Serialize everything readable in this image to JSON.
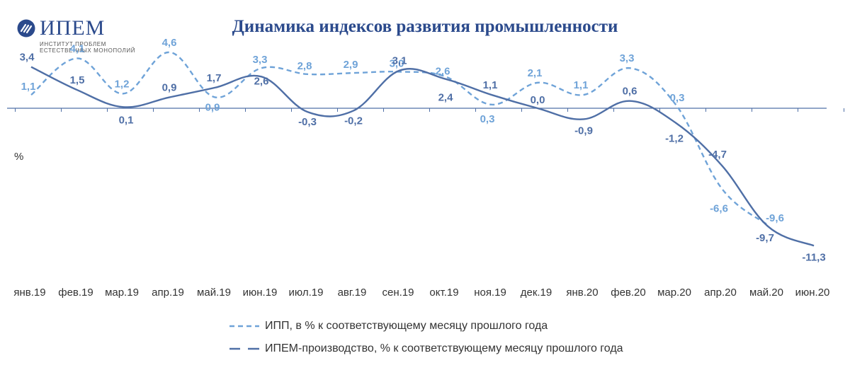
{
  "logo": {
    "name": "ИПЕМ",
    "subtitle_line1": "ИНСТИТУТ ПРОБЛЕМ",
    "subtitle_line2": "ЕСТЕСТВЕННЫХ МОНОПОЛИЙ",
    "icon": "ipem-logo-icon"
  },
  "chart_data": {
    "type": "line",
    "title": "Динамика индексов развития промышленности",
    "ylabel": "%",
    "categories": [
      "янв.19",
      "фев.19",
      "мар.19",
      "апр.19",
      "май.19",
      "июн.19",
      "июл.19",
      "авг.19",
      "сен.19",
      "окт.19",
      "ноя.19",
      "дек.19",
      "янв.20",
      "фев.20",
      "мар.20",
      "апр.20",
      "май.20",
      "июн.20"
    ],
    "series": [
      {
        "name": "ИПП, в % к соответствующему месяцу прошлого года",
        "style": "dashed",
        "color": "#6fa3d8",
        "values": [
          1.1,
          4.1,
          1.2,
          4.6,
          0.9,
          3.3,
          2.8,
          2.9,
          3.0,
          2.6,
          0.3,
          2.1,
          1.1,
          3.3,
          0.3,
          -6.6,
          -9.6,
          null
        ],
        "labels": [
          "1,1",
          "4,1",
          "1,2",
          "4,6",
          "0,9",
          "3,3",
          "2,8",
          "2,9",
          "3,0",
          "2,6",
          "0,3",
          "2,1",
          "1,1",
          "3,3",
          "0,3",
          "-6,6",
          "-9,6",
          ""
        ]
      },
      {
        "name": "ИПЕМ-производство, % к соответствующему месяцу прошлого года",
        "style": "solid",
        "color": "#4f6fa6",
        "values": [
          3.4,
          1.5,
          0.1,
          0.9,
          1.7,
          2.6,
          -0.3,
          -0.2,
          3.1,
          2.4,
          1.1,
          0.0,
          -0.9,
          0.6,
          -1.2,
          -4.7,
          -9.7,
          -11.3
        ],
        "labels": [
          "3,4",
          "1,5",
          "0,1",
          "0,9",
          "1,7",
          "2,6",
          "-0,3",
          "-0,2",
          "3,1",
          "2,4",
          "1,1",
          "0,0",
          "-0,9",
          "0,6",
          "-1,2",
          "-4,7",
          "-9,7",
          "-11,3"
        ]
      }
    ],
    "ylim": [
      -12,
      5
    ],
    "grid": false,
    "legend_position": "bottom"
  }
}
